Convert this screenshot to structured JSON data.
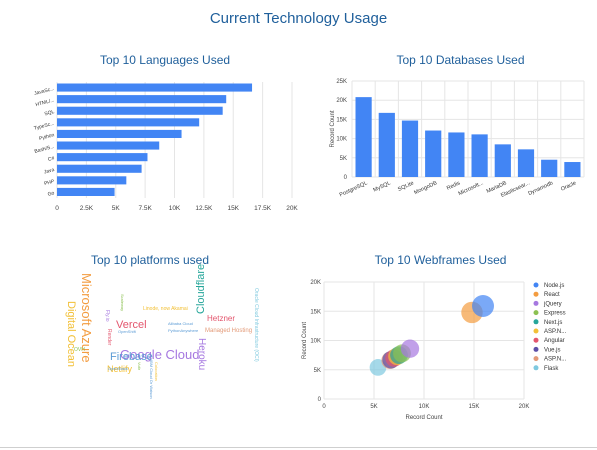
{
  "page_title": "Current Technology Usage",
  "colors": {
    "accent": "#4285f4",
    "title": "#1f5f9b",
    "grid": "#e5e5e5"
  },
  "chart_data": [
    {
      "id": "languages",
      "type": "bar",
      "orientation": "horizontal",
      "title": "Top 10 Languages Used",
      "categories": [
        "JavaSc...",
        "HTML/...",
        "SQL",
        "TypeSc...",
        "Python",
        "Bash/S...",
        "C#",
        "Java",
        "PHP",
        "Go"
      ],
      "values": [
        16600,
        14400,
        14100,
        12100,
        10600,
        8700,
        7700,
        7200,
        5900,
        4900
      ],
      "xlim": [
        0,
        20000
      ],
      "xticks": [
        "0",
        "2.5K",
        "5K",
        "7.5K",
        "10K",
        "12.5K",
        "15K",
        "17.5K",
        "20K"
      ],
      "grid": true
    },
    {
      "id": "databases",
      "type": "bar",
      "title": "Top 10 Databases Used",
      "categories": [
        "PostgreSQL",
        "MySQL",
        "SQLite",
        "MongoDB",
        "Redis",
        "Microsoft...",
        "MariaDB",
        "Elasticsear...",
        "Dynamodb",
        "Oracle"
      ],
      "values": [
        20800,
        16700,
        14700,
        12100,
        11600,
        11100,
        8500,
        7200,
        4500,
        3900
      ],
      "ylabel": "Record Count",
      "ylim": [
        0,
        25000
      ],
      "yticks": [
        "0",
        "5K",
        "10K",
        "15K",
        "20K",
        "25K"
      ],
      "grid": true
    },
    {
      "id": "webframes",
      "type": "scatter",
      "title": "Top 10 Webframes Used",
      "xlabel": "Record Count",
      "ylabel": "Record Count",
      "xlim": [
        0,
        20000
      ],
      "ylim": [
        0,
        20000
      ],
      "xticks": [
        "0",
        "5K",
        "10K",
        "15K",
        "20K"
      ],
      "yticks": [
        "0",
        "5K",
        "10K",
        "15K",
        "20K"
      ],
      "legend_position": "right",
      "series": [
        {
          "name": "Node.js",
          "x": 15900,
          "y": 15900,
          "color": "#4285f4"
        },
        {
          "name": "React",
          "x": 14800,
          "y": 14800,
          "color": "#f39c40"
        },
        {
          "name": "jQuery",
          "x": 8600,
          "y": 8600,
          "color": "#a678e0"
        },
        {
          "name": "Express",
          "x": 7800,
          "y": 7800,
          "color": "#8cc152"
        },
        {
          "name": "Next.js",
          "x": 7500,
          "y": 7500,
          "color": "#26a69a"
        },
        {
          "name": "ASP.N...",
          "x": 7300,
          "y": 7300,
          "color": "#f2c037"
        },
        {
          "name": "Angular",
          "x": 7000,
          "y": 7000,
          "color": "#e3556d"
        },
        {
          "name": "Vue.js",
          "x": 6700,
          "y": 6700,
          "color": "#5c4fa8"
        },
        {
          "name": "ASP.N...",
          "x": 6600,
          "y": 6600,
          "color": "#e39a78"
        },
        {
          "name": "Flask",
          "x": 5400,
          "y": 5400,
          "color": "#7fc9df"
        }
      ]
    }
  ],
  "platforms": {
    "title": "Top 10 platforms used",
    "words": [
      {
        "text": "Google Cloud",
        "color": "#a678e0",
        "size": 13
      },
      {
        "text": "Microsoft Azure",
        "color": "#f39c40",
        "size": 13
      },
      {
        "text": "Digital Ocean",
        "color": "#f2c037",
        "size": 11
      },
      {
        "text": "Firebase",
        "color": "#5b9bd5",
        "size": 11
      },
      {
        "text": "Vercel",
        "color": "#e3556d",
        "size": 11
      },
      {
        "text": "Cloudflare",
        "color": "#26a69a",
        "size": 11
      },
      {
        "text": "Heroku",
        "color": "#a678e0",
        "size": 10
      },
      {
        "text": "Netlify",
        "color": "#f2c037",
        "size": 9
      },
      {
        "text": "Hetzner",
        "color": "#e3556d",
        "size": 8
      },
      {
        "text": "Managed Hosting",
        "color": "#e39a78",
        "size": 6
      },
      {
        "text": "Linode, now Akamai",
        "color": "#f2c037",
        "size": 5
      },
      {
        "text": "Oracle Cloud Infrastructure (OCI)",
        "color": "#7fc9df",
        "size": 5
      },
      {
        "text": "OVH",
        "color": "#8cc152",
        "size": 5
      },
      {
        "text": "Fly.io",
        "color": "#a678e0",
        "size": 5
      },
      {
        "text": "Render",
        "color": "#e3556d",
        "size": 5
      },
      {
        "text": "OpenShift",
        "color": "#5b9bd5",
        "size": 4
      },
      {
        "text": "Alibaba Cloud",
        "color": "#5b9bd5",
        "size": 4
      },
      {
        "text": "PythonAnywhere",
        "color": "#5b9bd5",
        "size": 4
      },
      {
        "text": "Scaleway",
        "color": "#8cc152",
        "size": 4
      },
      {
        "text": "OpenStack",
        "color": "#5b9bd5",
        "size": 4
      },
      {
        "text": "Vultr",
        "color": "#8cc152",
        "size": 4
      },
      {
        "text": "IBM Cloud Or Watson",
        "color": "#5b9bd5",
        "size": 4
      },
      {
        "text": "Colocation",
        "color": "#f2c037",
        "size": 4
      }
    ]
  }
}
